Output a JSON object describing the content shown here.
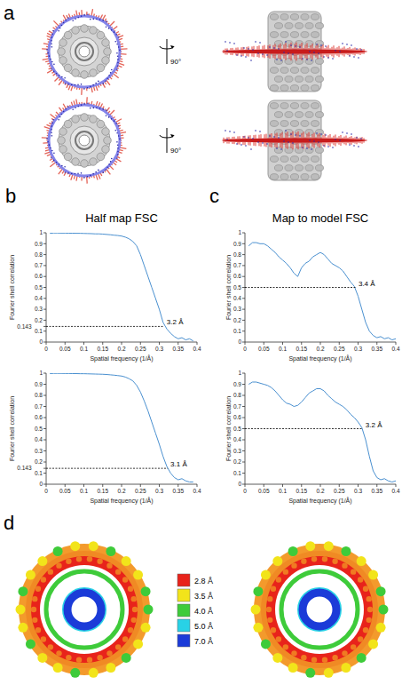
{
  "panels": [
    {
      "letter": "a",
      "rotation_labels": [
        "90°",
        "90°"
      ]
    },
    {
      "letter": "b",
      "title": "Half map FSC"
    },
    {
      "letter": "c",
      "title": "Map to model FSC"
    },
    {
      "letter": "d",
      "color_key": [
        {
          "label": "2.8 Å",
          "color": "#e8231b"
        },
        {
          "label": "3.5 Å",
          "color": "#f2e41a"
        },
        {
          "label": "4.0 Å",
          "color": "#3ecb3a"
        },
        {
          "label": "5.0 Å",
          "color": "#28d2e6"
        },
        {
          "label": "7.0 Å",
          "color": "#1b3bd8"
        }
      ]
    }
  ],
  "chart_data": [
    {
      "type": "line",
      "xlabel": "Spatial frequency (1/Å)",
      "ylabel": "Fourier shell correlation",
      "color": "#4a90d0",
      "xlim": [
        0,
        0.4
      ],
      "xticks": [
        0,
        0.05,
        0.1,
        0.15,
        0.2,
        0.25,
        0.3,
        0.35,
        0.4
      ],
      "ylim": [
        0,
        1
      ],
      "yticks": [
        0,
        0.1,
        0.143,
        0.2,
        0.3,
        0.4,
        0.5,
        0.6,
        0.7,
        0.8,
        0.9,
        1
      ],
      "x": [
        0.01,
        0.02,
        0.03,
        0.04,
        0.05,
        0.06,
        0.07,
        0.08,
        0.09,
        0.1,
        0.11,
        0.12,
        0.13,
        0.14,
        0.15,
        0.16,
        0.17,
        0.18,
        0.19,
        0.2,
        0.21,
        0.22,
        0.23,
        0.24,
        0.25,
        0.26,
        0.27,
        0.28,
        0.29,
        0.3,
        0.31,
        0.32,
        0.33,
        0.34,
        0.35,
        0.36,
        0.37,
        0.38,
        0.39
      ],
      "values": [
        0.995,
        0.998,
        0.998,
        0.997,
        0.997,
        0.996,
        0.996,
        0.995,
        0.995,
        0.994,
        0.993,
        0.992,
        0.99,
        0.99,
        0.988,
        0.985,
        0.982,
        0.978,
        0.975,
        0.97,
        0.96,
        0.945,
        0.92,
        0.88,
        0.8,
        0.7,
        0.6,
        0.5,
        0.4,
        0.3,
        0.18,
        0.12,
        0.08,
        0.05,
        0.03,
        0.04,
        0.02,
        0.03,
        0.01
      ],
      "threshold": {
        "x": 0.3125,
        "y": 0.143,
        "label": "3.2 Å"
      }
    },
    {
      "type": "line",
      "xlabel": "Spatial frequency (1/Å)",
      "ylabel": "Fourier shell correlation",
      "color": "#4a90d0",
      "xlim": [
        0,
        0.4
      ],
      "xticks": [
        0,
        0.05,
        0.1,
        0.15,
        0.2,
        0.25,
        0.3,
        0.35,
        0.4
      ],
      "ylim": [
        0,
        1
      ],
      "yticks": [
        0,
        0.1,
        0.143,
        0.2,
        0.3,
        0.4,
        0.5,
        0.6,
        0.7,
        0.8,
        0.9,
        1
      ],
      "x": [
        0.01,
        0.02,
        0.03,
        0.04,
        0.05,
        0.06,
        0.07,
        0.08,
        0.09,
        0.1,
        0.11,
        0.12,
        0.13,
        0.14,
        0.15,
        0.16,
        0.17,
        0.18,
        0.19,
        0.2,
        0.21,
        0.22,
        0.23,
        0.24,
        0.25,
        0.26,
        0.27,
        0.28,
        0.29,
        0.3,
        0.31,
        0.32,
        0.33,
        0.34,
        0.35,
        0.36,
        0.37,
        0.38,
        0.39
      ],
      "values": [
        0.996,
        0.998,
        0.998,
        0.998,
        0.997,
        0.997,
        0.996,
        0.996,
        0.995,
        0.995,
        0.994,
        0.993,
        0.992,
        0.991,
        0.99,
        0.988,
        0.985,
        0.982,
        0.978,
        0.974,
        0.965,
        0.95,
        0.93,
        0.89,
        0.83,
        0.75,
        0.66,
        0.56,
        0.46,
        0.36,
        0.25,
        0.16,
        0.1,
        0.06,
        0.04,
        0.05,
        0.03,
        0.02,
        0.02
      ],
      "threshold": {
        "x": 0.3226,
        "y": 0.143,
        "label": "3.1 Å"
      }
    },
    {
      "type": "line",
      "xlabel": "Spatial frequency (1/Å)",
      "ylabel": "Fourier shell correlation",
      "color": "#4a90d0",
      "xlim": [
        0,
        0.4
      ],
      "xticks": [
        0,
        0.05,
        0.1,
        0.15,
        0.2,
        0.25,
        0.3,
        0.35,
        0.4
      ],
      "ylim": [
        0,
        1
      ],
      "yticks": [
        0,
        0.1,
        0.2,
        0.3,
        0.4,
        0.5,
        0.6,
        0.7,
        0.8,
        0.9,
        1
      ],
      "x": [
        0.01,
        0.02,
        0.03,
        0.04,
        0.05,
        0.06,
        0.07,
        0.08,
        0.09,
        0.1,
        0.11,
        0.12,
        0.13,
        0.14,
        0.15,
        0.16,
        0.17,
        0.18,
        0.19,
        0.2,
        0.21,
        0.22,
        0.23,
        0.24,
        0.25,
        0.26,
        0.27,
        0.28,
        0.29,
        0.3,
        0.31,
        0.32,
        0.33,
        0.34,
        0.35,
        0.36,
        0.37,
        0.38,
        0.39,
        0.4
      ],
      "values": [
        0.88,
        0.91,
        0.91,
        0.9,
        0.9,
        0.88,
        0.85,
        0.82,
        0.78,
        0.75,
        0.72,
        0.68,
        0.63,
        0.6,
        0.68,
        0.72,
        0.74,
        0.78,
        0.8,
        0.82,
        0.8,
        0.76,
        0.72,
        0.7,
        0.68,
        0.65,
        0.6,
        0.55,
        0.51,
        0.42,
        0.3,
        0.18,
        0.1,
        0.06,
        0.04,
        0.05,
        0.03,
        0.04,
        0.02,
        0.03
      ],
      "threshold": {
        "x": 0.294,
        "y": 0.5,
        "label": "3.4 Å"
      }
    },
    {
      "type": "line",
      "xlabel": "Spatial frequency (1/Å)",
      "ylabel": "Fourier shell correlation",
      "color": "#4a90d0",
      "xlim": [
        0,
        0.4
      ],
      "xticks": [
        0,
        0.05,
        0.1,
        0.15,
        0.2,
        0.25,
        0.3,
        0.35,
        0.4
      ],
      "ylim": [
        0,
        1
      ],
      "yticks": [
        0,
        0.1,
        0.2,
        0.3,
        0.4,
        0.5,
        0.6,
        0.7,
        0.8,
        0.9,
        1
      ],
      "x": [
        0.01,
        0.02,
        0.03,
        0.04,
        0.05,
        0.06,
        0.07,
        0.08,
        0.09,
        0.1,
        0.11,
        0.12,
        0.13,
        0.14,
        0.15,
        0.16,
        0.17,
        0.18,
        0.19,
        0.2,
        0.21,
        0.22,
        0.23,
        0.24,
        0.25,
        0.26,
        0.27,
        0.28,
        0.29,
        0.3,
        0.31,
        0.32,
        0.33,
        0.34,
        0.35,
        0.36,
        0.37,
        0.38,
        0.39,
        0.4
      ],
      "values": [
        0.9,
        0.92,
        0.92,
        0.91,
        0.9,
        0.89,
        0.87,
        0.84,
        0.8,
        0.76,
        0.73,
        0.72,
        0.7,
        0.71,
        0.74,
        0.78,
        0.82,
        0.84,
        0.86,
        0.86,
        0.84,
        0.8,
        0.77,
        0.74,
        0.72,
        0.7,
        0.67,
        0.63,
        0.6,
        0.56,
        0.51,
        0.4,
        0.25,
        0.12,
        0.06,
        0.04,
        0.05,
        0.03,
        0.02,
        0.03
      ],
      "threshold": {
        "x": 0.3125,
        "y": 0.5,
        "label": "3.2 Å"
      }
    }
  ]
}
